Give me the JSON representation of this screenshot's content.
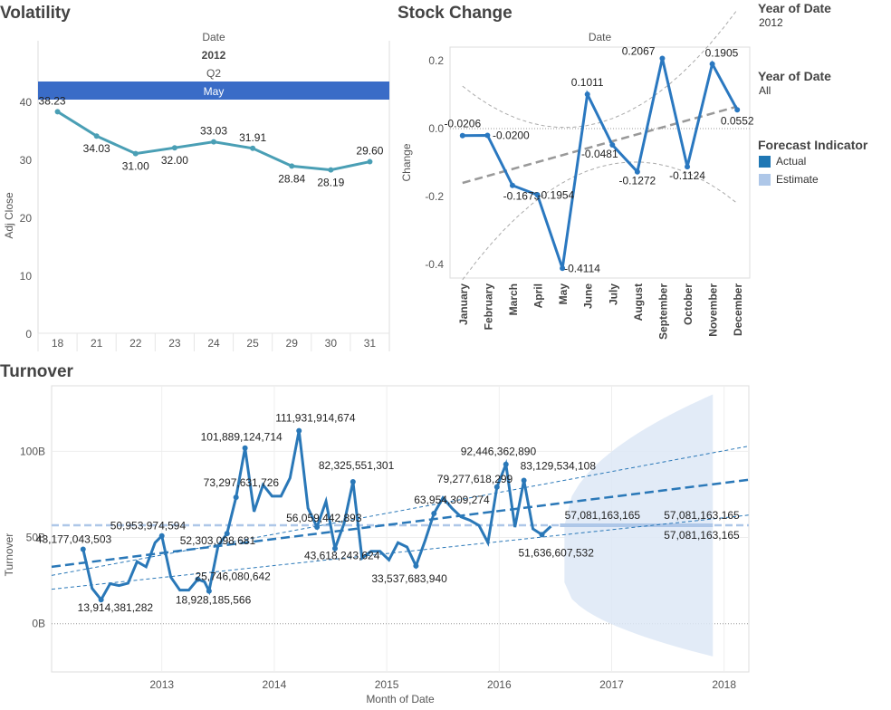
{
  "titles": {
    "volatility": "Volatility",
    "stock_change": "Stock Change",
    "turnover": "Turnover"
  },
  "filters": [
    {
      "label": "Year of Date",
      "value": "2012"
    },
    {
      "label": "Year of Date",
      "value": "All"
    }
  ],
  "legend": {
    "title": "Forecast Indicator",
    "items": [
      {
        "label": "Actual",
        "color": "#1f77b4"
      },
      {
        "label": "Estimate",
        "color": "#aec7e8"
      }
    ]
  },
  "chart_data": [
    {
      "type": "line",
      "title": "Volatility",
      "header": {
        "field": "Date",
        "year": "2012",
        "quarter": "Q2",
        "month": "May"
      },
      "categories": [
        "18",
        "21",
        "22",
        "23",
        "24",
        "25",
        "29",
        "30",
        "31"
      ],
      "series": [
        {
          "values": [
            38.23,
            34.03,
            31.0,
            32.0,
            33.03,
            31.91,
            28.84,
            28.19,
            29.6
          ],
          "labels": [
            "38.23",
            "34.03",
            "31.00",
            "32.00",
            "33.03",
            "31.91",
            "28.84",
            "28.19",
            "29.60"
          ]
        }
      ],
      "ylabel": "Adj Close",
      "yticks": [
        0,
        10,
        20,
        30,
        40
      ],
      "ylim": [
        0,
        40
      ],
      "color": "#4a9fb5",
      "header_color": "#3a6cc7"
    },
    {
      "type": "line",
      "title": "Stock Change",
      "header": {
        "field": "Date"
      },
      "categories": [
        "January",
        "February",
        "March",
        "April",
        "May",
        "June",
        "July",
        "August",
        "September",
        "October",
        "November",
        "December"
      ],
      "series": [
        {
          "values": [
            -0.0206,
            -0.02,
            -0.1673,
            -0.1954,
            -0.4114,
            0.1011,
            -0.0481,
            -0.1272,
            0.2067,
            -0.1124,
            0.1905,
            0.0552
          ],
          "labels": [
            "-0.0206",
            "-0.0200",
            "-0.1673",
            "-0.1954",
            "-0.4114",
            "0.1011",
            "-0.0481",
            "-0.1272",
            "0.2067",
            "-0.1124",
            "0.1905",
            "0.0552"
          ]
        }
      ],
      "trend": {
        "start": -0.16,
        "end": 0.065
      },
      "ylabel": "Change",
      "yticks": [
        -0.4,
        -0.2,
        0.0,
        0.2
      ],
      "ytick_labels": [
        "-0.4",
        "-0.2",
        "0.0",
        "0.2"
      ],
      "ylim": [
        -0.44,
        0.24
      ],
      "color": "#2a78c0",
      "grid": false
    },
    {
      "type": "line",
      "title": "Turnover",
      "xlabel": "Month of Date",
      "ylabel": "Turnover",
      "xticks": [
        2013,
        2014,
        2015,
        2016,
        2017,
        2018
      ],
      "ytick_labels": [
        "0B",
        "50B",
        "100B"
      ],
      "yticks": [
        0,
        50,
        100
      ],
      "ylim": [
        -28,
        138
      ],
      "xlim": [
        2012.02,
        2018.22
      ],
      "unit_note": "values in billions",
      "series": [
        {
          "name": "Actual",
          "x": [
            2012.3,
            2012.38,
            2012.46,
            2012.54,
            2012.62,
            2012.7,
            2012.78,
            2012.86,
            2012.94,
            2013.0,
            2013.08,
            2013.16,
            2013.24,
            2013.32,
            2013.38,
            2013.42,
            2013.5,
            2013.58,
            2013.66,
            2013.74,
            2013.82,
            2013.9,
            2013.98,
            2014.06,
            2014.14,
            2014.22,
            2014.3,
            2014.38,
            2014.46,
            2014.54,
            2014.62,
            2014.7,
            2014.78,
            2014.86,
            2014.94,
            2015.02,
            2015.1,
            2015.18,
            2015.26,
            2015.34,
            2015.42,
            2015.5,
            2015.58,
            2015.66,
            2015.74,
            2015.82,
            2015.9,
            2015.98,
            2016.06,
            2016.14,
            2016.22,
            2016.3,
            2016.38,
            2016.46
          ],
          "values": [
            43.18,
            20.5,
            13.91,
            23.2,
            22.1,
            23.5,
            36.0,
            33.0,
            47.0,
            50.95,
            27.0,
            19.5,
            19.5,
            25.75,
            24.3,
            18.93,
            45.0,
            52.3,
            73.3,
            101.89,
            65.0,
            80.5,
            74.0,
            74.0,
            84.5,
            111.93,
            67.0,
            56.06,
            71.0,
            43.62,
            58.0,
            82.33,
            38.0,
            42.0,
            42.0,
            37.0,
            47.0,
            44.5,
            33.54,
            48.0,
            63.95,
            73.0,
            67.0,
            62.0,
            60.0,
            57.0,
            47.0,
            79.28,
            92.45,
            56.0,
            83.13,
            55.0,
            51.64,
            56.5
          ],
          "color": "#2a78b8"
        },
        {
          "name": "Estimate",
          "x": [
            2016.54,
            2016.62,
            2016.7,
            2016.78,
            2016.86,
            2016.94,
            2017.02,
            2017.1,
            2017.18,
            2017.26,
            2017.34,
            2017.42,
            2017.5,
            2017.58,
            2017.66,
            2017.74,
            2017.82,
            2017.9
          ],
          "values": [
            57.08,
            57.08,
            57.08,
            57.08,
            57.08,
            57.08,
            57.08,
            57.08,
            57.08,
            57.08,
            57.08,
            57.08,
            57.08,
            57.08,
            57.08,
            57.08,
            57.08,
            57.08
          ],
          "color": "#aec7e8"
        }
      ],
      "labels": [
        {
          "text": "43,177,043,503",
          "x": 2012.3,
          "y": 43.18
        },
        {
          "text": "13,914,381,282",
          "x": 2012.46,
          "y": 13.91
        },
        {
          "text": "50,953,974,594",
          "x": 2013.0,
          "y": 50.95
        },
        {
          "text": "18,928,185,566",
          "x": 2013.42,
          "y": 18.93
        },
        {
          "text": "25,746,080,642",
          "x": 2013.32,
          "y": 25.75
        },
        {
          "text": "73,297,631,726",
          "x": 2013.66,
          "y": 73.3
        },
        {
          "text": "101,889,124,714",
          "x": 2013.74,
          "y": 101.89
        },
        {
          "text": "52,303,098,681",
          "x": 2013.58,
          "y": 52.3
        },
        {
          "text": "111,931,914,674",
          "x": 2014.22,
          "y": 111.93
        },
        {
          "text": "56,059,442,893",
          "x": 2014.38,
          "y": 56.06
        },
        {
          "text": "43,618,243,624",
          "x": 2014.54,
          "y": 43.62
        },
        {
          "text": "82,325,551,301",
          "x": 2014.7,
          "y": 82.33
        },
        {
          "text": "33,537,683,940",
          "x": 2015.26,
          "y": 33.54
        },
        {
          "text": "63,954,309,274",
          "x": 2015.42,
          "y": 63.95
        },
        {
          "text": "79,277,618,299",
          "x": 2015.98,
          "y": 79.28
        },
        {
          "text": "92,446,362,890",
          "x": 2016.06,
          "y": 92.45
        },
        {
          "text": "83,129,534,108",
          "x": 2016.22,
          "y": 83.13
        },
        {
          "text": "51,636,607,532",
          "x": 2016.38,
          "y": 51.64
        },
        {
          "text": "57,081,163,165",
          "x": 2017.42,
          "y": 57.08
        },
        {
          "text": "57,081,163,165",
          "x": 2017.9,
          "y": 57.08
        },
        {
          "text": "57,081,163,165",
          "x": 2017.9,
          "y": 57.08
        }
      ],
      "trend": {
        "start": 33.0,
        "end": 83.5
      },
      "trend_band": {
        "upper": [
          28.0,
          103.0
        ],
        "lower": [
          20.0,
          63.0
        ]
      },
      "forecast_band": {
        "x": [
          2016.58,
          2017.9
        ],
        "upper": [
          57.0,
          133.0
        ],
        "lower": [
          24.0,
          -19.0
        ]
      },
      "grid": true
    }
  ]
}
